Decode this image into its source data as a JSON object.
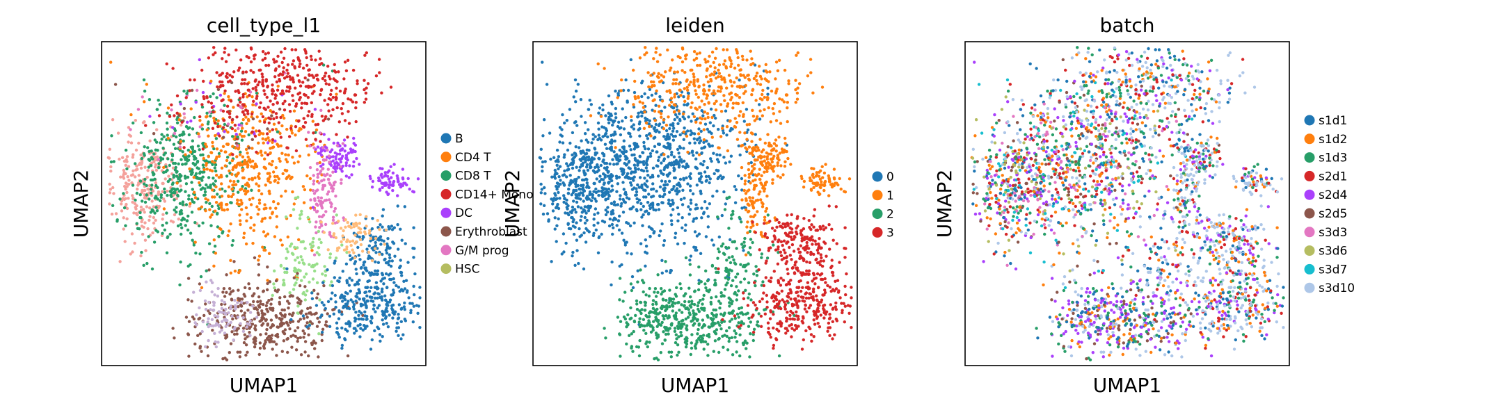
{
  "figure": {
    "panels": [
      {
        "title": "cell_type_l1",
        "xlabel": "UMAP1",
        "ylabel": "UMAP2",
        "legend": [
          {
            "label": "B",
            "color": "#1f77b4"
          },
          {
            "label": "CD4 T",
            "color": "#ff7f0e"
          },
          {
            "label": "CD8 T",
            "color": "#279e68"
          },
          {
            "label": "CD14+ Mono",
            "color": "#d62728"
          },
          {
            "label": "DC",
            "color": "#aa40fc"
          },
          {
            "label": "Erythroblast",
            "color": "#8c564b"
          },
          {
            "label": "G/M prog",
            "color": "#e377c2"
          },
          {
            "label": "HSC",
            "color": "#b5bd61"
          }
        ]
      },
      {
        "title": "leiden",
        "xlabel": "UMAP1",
        "ylabel": "UMAP2",
        "legend": [
          {
            "label": "0",
            "color": "#1f77b4"
          },
          {
            "label": "1",
            "color": "#ff7f0e"
          },
          {
            "label": "2",
            "color": "#279e68"
          },
          {
            "label": "3",
            "color": "#d62728"
          }
        ]
      },
      {
        "title": "batch",
        "xlabel": "UMAP1",
        "ylabel": "UMAP2",
        "legend": [
          {
            "label": "s1d1",
            "color": "#1f77b4"
          },
          {
            "label": "s1d2",
            "color": "#ff7f0e"
          },
          {
            "label": "s1d3",
            "color": "#279e68"
          },
          {
            "label": "s2d1",
            "color": "#d62728"
          },
          {
            "label": "s2d4",
            "color": "#aa40fc"
          },
          {
            "label": "s2d5",
            "color": "#8c564b"
          },
          {
            "label": "s3d3",
            "color": "#e377c2"
          },
          {
            "label": "s3d6",
            "color": "#b5bd61"
          },
          {
            "label": "s3d7",
            "color": "#17becf"
          },
          {
            "label": "s3d10",
            "color": "#aec7e8"
          }
        ]
      }
    ]
  },
  "chart_data": [
    {
      "type": "scatter",
      "title": "cell_type_l1",
      "xlabel": "UMAP1",
      "ylabel": "UMAP2",
      "grid": false,
      "legend_position": "right",
      "series": [
        {
          "name": "B",
          "color": "#1f77b4",
          "x": [],
          "y": []
        },
        {
          "name": "CD4 T",
          "color": "#ff7f0e",
          "x": [],
          "y": []
        },
        {
          "name": "CD8 T",
          "color": "#279e68",
          "x": [],
          "y": []
        },
        {
          "name": "CD14+ Mono",
          "color": "#d62728",
          "x": [],
          "y": []
        },
        {
          "name": "DC",
          "color": "#aa40fc",
          "x": [],
          "y": []
        },
        {
          "name": "Erythroblast",
          "color": "#8c564b",
          "x": [],
          "y": []
        },
        {
          "name": "G/M prog",
          "color": "#e377c2",
          "x": [],
          "y": []
        },
        {
          "name": "HSC",
          "color": "#b5bd61",
          "x": [],
          "y": []
        }
      ]
    },
    {
      "type": "scatter",
      "title": "leiden",
      "xlabel": "UMAP1",
      "ylabel": "UMAP2",
      "grid": false,
      "legend_position": "right",
      "series": [
        {
          "name": "0",
          "color": "#1f77b4",
          "x": [],
          "y": []
        },
        {
          "name": "1",
          "color": "#ff7f0e",
          "x": [],
          "y": []
        },
        {
          "name": "2",
          "color": "#279e68",
          "x": [],
          "y": []
        },
        {
          "name": "3",
          "color": "#d62728",
          "x": [],
          "y": []
        }
      ]
    },
    {
      "type": "scatter",
      "title": "batch",
      "xlabel": "UMAP1",
      "ylabel": "UMAP2",
      "grid": false,
      "legend_position": "right",
      "series": [
        {
          "name": "s1d1",
          "color": "#1f77b4",
          "x": [],
          "y": []
        },
        {
          "name": "s1d2",
          "color": "#ff7f0e",
          "x": [],
          "y": []
        },
        {
          "name": "s1d3",
          "color": "#279e68",
          "x": [],
          "y": []
        },
        {
          "name": "s2d1",
          "color": "#d62728",
          "x": [],
          "y": []
        },
        {
          "name": "s2d4",
          "color": "#aa40fc",
          "x": [],
          "y": []
        },
        {
          "name": "s2d5",
          "color": "#8c564b",
          "x": [],
          "y": []
        },
        {
          "name": "s3d3",
          "color": "#e377c2",
          "x": [],
          "y": []
        },
        {
          "name": "s3d6",
          "color": "#b5bd61",
          "x": [],
          "y": []
        },
        {
          "name": "s3d7",
          "color": "#17becf",
          "x": [],
          "y": []
        },
        {
          "name": "s3d10",
          "color": "#aec7e8",
          "x": [],
          "y": []
        }
      ]
    }
  ]
}
